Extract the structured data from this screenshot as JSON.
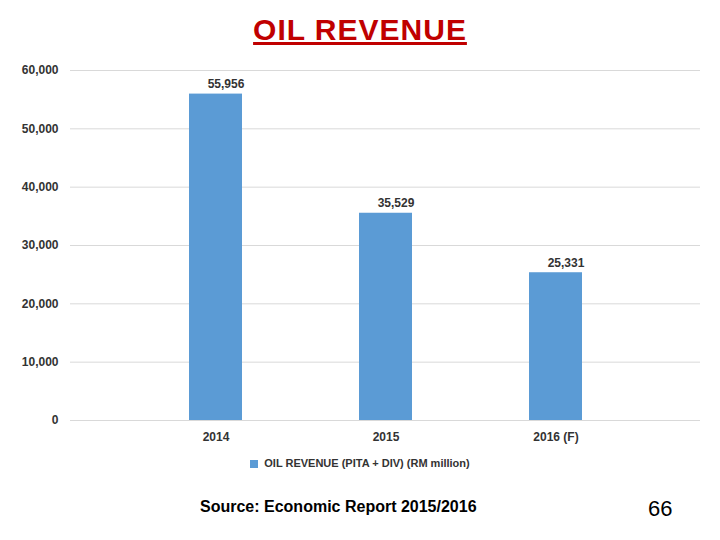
{
  "chart_data": {
    "type": "bar",
    "title": "OIL REVENUE",
    "categories": [
      "2014",
      "2015",
      "2016 (F)"
    ],
    "series": [
      {
        "name": "OIL REVENUE (PITA + DIV) (RM million)",
        "color": "#5b9bd5",
        "values": [
          55956,
          35529,
          25331
        ],
        "value_labels": [
          "55,956",
          "35,529",
          "25,331"
        ]
      }
    ],
    "ylim": [
      0,
      60000
    ],
    "yticks": [
      0,
      {
        "value": 10000,
        "label": "10,000"
      },
      {
        "value": 20000,
        "label": "20,000"
      },
      {
        "value": 30000,
        "label": "30,000"
      },
      {
        "value": 40000,
        "label": "40,000"
      },
      {
        "value": 50000,
        "label": "50,000"
      },
      {
        "value": 60000,
        "label": "60,000"
      }
    ],
    "grid": true,
    "legend": "bottom",
    "data_labels": true,
    "source": "Source: Economic Report 2015/2016",
    "page_number": 66
  }
}
